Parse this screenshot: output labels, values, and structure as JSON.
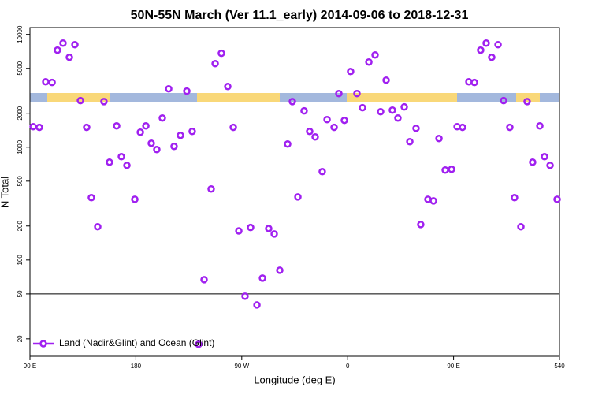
{
  "chart_data": {
    "type": "scatter",
    "title": "50N-55N March (Ver 11.1_early)   2014-09-06 to 2018-12-31",
    "xlabel": "Longitude (deg E)",
    "ylabel": "N Total",
    "log_y": true,
    "hline": 50,
    "xlim": [
      90,
      540
    ],
    "xticks": [
      {
        "value": 90,
        "label": "90 E"
      },
      180,
      {
        "value": 270,
        "label": "90 W"
      },
      {
        "value": 360,
        "label": "0"
      },
      {
        "value": 450,
        "label": "90 E"
      },
      540
    ],
    "ylim": [
      14,
      11500
    ],
    "yticks": [
      20,
      50,
      100,
      200,
      500,
      1000,
      2000,
      5000,
      10000
    ],
    "legend": "bottom-left",
    "series": [
      {
        "name": "Land (Nadir&Glint) and Ocean (Glint)",
        "color": "#a020f0",
        "x": [
          92.7,
          98,
          103.4,
          108.8,
          113.4,
          118.1,
          123.5,
          128.2,
          132.9,
          138.2,
          142.2,
          147.6,
          152.9,
          157.6,
          163.7,
          167.7,
          172.4,
          179.1,
          183.8,
          188.5,
          193.1,
          197.8,
          202.5,
          207.9,
          212.5,
          217.9,
          223.3,
          227.9,
          233.3,
          238,
          244,
          247.4,
          252.7,
          258.1,
          262.8,
          267.5,
          272.8,
          277.5,
          282.9,
          287.6,
          292.9,
          297.6,
          302.3,
          309,
          313,
          317.7,
          323,
          327.7,
          332.4,
          338.4,
          342.5,
          348.5,
          352.5,
          357.2,
          362.5,
          367.9,
          372.6,
          378,
          383.3,
          388,
          392.7,
          398,
          402.7,
          408.1,
          412.8,
          418.1,
          422.1,
          428.2,
          432.9,
          437.6,
          442.9,
          448.3,
          453,
          457.6,
          463,
          467.7,
          473,
          477.7,
          482.4,
          487.8,
          492.5,
          497.8,
          501.8,
          507.2,
          512.5,
          517.2,
          523.3,
          527.3,
          532,
          538
        ],
        "values": [
          1520,
          1500,
          3800,
          3750,
          7250,
          8370,
          6270,
          8110,
          2590,
          1500,
          357,
          197,
          2540,
          736,
          1545,
          824,
          690,
          345,
          1358,
          1545,
          1083,
          953,
          1815,
          3290,
          1017,
          1273,
          3140,
          1380,
          17.9,
          66.8,
          426,
          5510,
          6800,
          3450,
          1500,
          181,
          47.7,
          194,
          39.9,
          69,
          190,
          170,
          81,
          1067,
          2540,
          362,
          2100,
          1380,
          1233,
          607,
          1757,
          1500,
          2990,
          1730,
          4690,
          2990,
          2240,
          5690,
          6580,
          2065,
          3930,
          2130,
          1815,
          2275,
          1119,
          1470,
          206,
          345,
          334,
          1194,
          627,
          637,
          1520,
          1500,
          3800,
          3750,
          7250,
          8370,
          6270,
          8110,
          2590,
          1500,
          357,
          197,
          2540,
          736,
          1545,
          824,
          690,
          345
        ]
      }
    ]
  }
}
